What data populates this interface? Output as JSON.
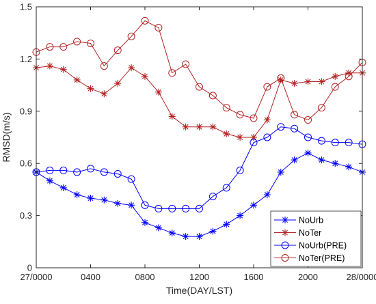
{
  "chart_data": {
    "type": "line",
    "xlabel": "Time(DAY/LST)",
    "ylabel": "RMSD(m/s)",
    "ylim": [
      0,
      1.5
    ],
    "yticks": [
      0,
      0.3,
      0.6,
      0.9,
      1.2,
      1.5
    ],
    "ytick_labels": [
      "0",
      "0.3",
      "0.6",
      "0.9",
      "1.2",
      "1.5"
    ],
    "xlim": [
      0,
      24
    ],
    "xticks": [
      0,
      4,
      8,
      12,
      16,
      20,
      24
    ],
    "xtick_labels": [
      "27/0000",
      "0400",
      "0800",
      "1200",
      "1600",
      "2000",
      "28/0000"
    ],
    "x": [
      0,
      1,
      2,
      3,
      4,
      5,
      6,
      7,
      8,
      9,
      10,
      11,
      12,
      13,
      14,
      15,
      16,
      17,
      18,
      19,
      20,
      21,
      22,
      23,
      24
    ],
    "grid": false,
    "legend_position": "bottom-right",
    "series": [
      {
        "name": "NoUrb",
        "color": "#0000ff",
        "marker": "asterisk",
        "values": [
          0.55,
          0.5,
          0.46,
          0.42,
          0.4,
          0.39,
          0.37,
          0.36,
          0.26,
          0.23,
          0.2,
          0.18,
          0.18,
          0.21,
          0.25,
          0.3,
          0.36,
          0.42,
          0.55,
          0.62,
          0.66,
          0.62,
          0.6,
          0.58,
          0.55
        ]
      },
      {
        "name": "NoTer",
        "color": "#b22222",
        "marker": "asterisk",
        "values": [
          1.15,
          1.16,
          1.14,
          1.08,
          1.03,
          1.0,
          1.06,
          1.15,
          1.1,
          1.01,
          0.87,
          0.81,
          0.81,
          0.81,
          0.77,
          0.75,
          0.75,
          0.85,
          1.08,
          1.06,
          1.07,
          1.07,
          1.1,
          1.12,
          1.12
        ]
      },
      {
        "name": "NoUrb(PRE)",
        "color": "#0000ff",
        "marker": "circle",
        "values": [
          0.55,
          0.56,
          0.56,
          0.55,
          0.57,
          0.55,
          0.54,
          0.51,
          0.36,
          0.34,
          0.34,
          0.34,
          0.34,
          0.41,
          0.46,
          0.56,
          0.72,
          0.75,
          0.81,
          0.8,
          0.75,
          0.73,
          0.72,
          0.72,
          0.71
        ]
      },
      {
        "name": "NoTer(PRE)",
        "color": "#b22222",
        "marker": "circle",
        "values": [
          1.24,
          1.27,
          1.27,
          1.3,
          1.29,
          1.16,
          1.25,
          1.33,
          1.42,
          1.38,
          1.12,
          1.17,
          1.04,
          0.99,
          0.92,
          0.88,
          0.86,
          1.04,
          1.09,
          0.88,
          0.85,
          0.92,
          1.04,
          1.1,
          1.18
        ]
      }
    ]
  }
}
